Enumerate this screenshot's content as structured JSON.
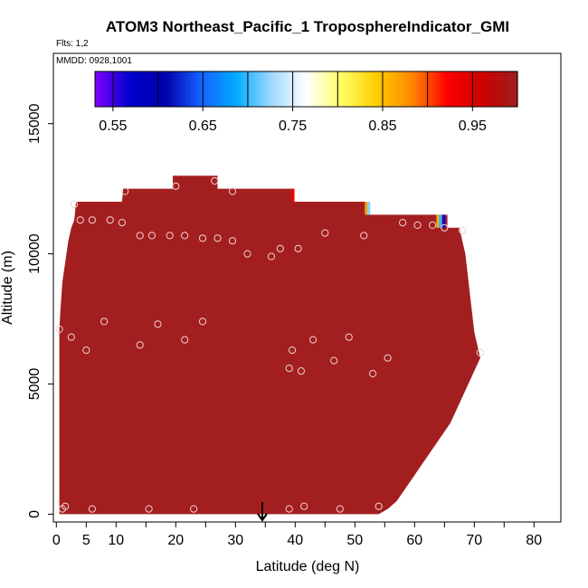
{
  "chart_data": {
    "type": "heatmap",
    "title": "ATOM3 Northeast_Pacific_1 TroposphereIndicator_GMI",
    "subtitle_flights": "Flts: 1,2",
    "subtitle_dates": "MMDD: 0928,1001",
    "xlabel": "Latitude (deg N)",
    "ylabel": "Altitude (m)",
    "xlim": [
      -0.5,
      84.5
    ],
    "ylim": [
      -300,
      17700
    ],
    "x_ticks": [
      0,
      5,
      10,
      20,
      30,
      40,
      50,
      60,
      70,
      80
    ],
    "x_minor_ticks": [
      15,
      25,
      35,
      45,
      55,
      65,
      75,
      85
    ],
    "y_ticks": [
      0,
      5000,
      10000,
      15000
    ],
    "colorbar": {
      "range": [
        0.53,
        1.0
      ],
      "tick_values": [
        0.55,
        0.65,
        0.75,
        0.85,
        0.95
      ],
      "tick_labels": [
        "0.55",
        "0.65",
        "0.75",
        "0.85",
        "0.95"
      ],
      "segment_edges": [
        0.53,
        0.55,
        0.6,
        0.65,
        0.7,
        0.75,
        0.8,
        0.85,
        0.9,
        0.95,
        1.0
      ],
      "color_stops": [
        "#7f00ff",
        "#0000cd",
        "#0000aa",
        "#1560ff",
        "#00aaff",
        "#9fd8ff",
        "#ffffff",
        "#ffff66",
        "#ffcc00",
        "#ff8800",
        "#ff0000",
        "#cc0000",
        "#9e1e1e"
      ]
    },
    "fill_value": 0.99,
    "fill_color": "#a31f1f",
    "field_outline": [
      [
        0.5,
        0
      ],
      [
        0.5,
        7100
      ],
      [
        0.7,
        7900
      ],
      [
        1.0,
        8900
      ],
      [
        1.5,
        9700
      ],
      [
        2.0,
        10500
      ],
      [
        2.5,
        11000
      ],
      [
        3.0,
        11300
      ],
      [
        3.3,
        12000
      ],
      [
        11.0,
        12000
      ],
      [
        11.2,
        12500
      ],
      [
        19.5,
        12500
      ],
      [
        19.5,
        13000
      ],
      [
        27.0,
        13000
      ],
      [
        27.0,
        12500
      ],
      [
        39.8,
        12500
      ],
      [
        39.8,
        12000
      ],
      [
        52.5,
        12000
      ],
      [
        52.5,
        11500
      ],
      [
        65.5,
        11500
      ],
      [
        65.5,
        11000
      ],
      [
        67.5,
        11000
      ],
      [
        68.5,
        10000
      ],
      [
        69.0,
        9000
      ],
      [
        69.5,
        8000
      ],
      [
        70.0,
        7000
      ],
      [
        70.5,
        6500
      ],
      [
        71.0,
        6000
      ],
      [
        70.0,
        5500
      ],
      [
        69.0,
        5000
      ],
      [
        68.0,
        4500
      ],
      [
        67.0,
        4000
      ],
      [
        66.0,
        3500
      ],
      [
        64.5,
        3000
      ],
      [
        63.0,
        2500
      ],
      [
        61.5,
        2000
      ],
      [
        60.0,
        1500
      ],
      [
        58.5,
        1000
      ],
      [
        57.0,
        500
      ],
      [
        55.5,
        200
      ],
      [
        54.0,
        0
      ]
    ],
    "colored_cells": [
      {
        "lat": 39.6,
        "alt_low": 12000,
        "alt_high": 12500,
        "value": 0.93
      },
      {
        "lat": 51.9,
        "alt_low": 11500,
        "alt_high": 12000,
        "value": 0.87
      },
      {
        "lat": 52.3,
        "alt_low": 11500,
        "alt_high": 12000,
        "value": 0.72
      },
      {
        "lat": 63.9,
        "alt_low": 11000,
        "alt_high": 11500,
        "value": 0.86
      },
      {
        "lat": 64.3,
        "alt_low": 11000,
        "alt_high": 11500,
        "value": 0.7
      },
      {
        "lat": 64.9,
        "alt_low": 11000,
        "alt_high": 11500,
        "value": 0.56
      }
    ],
    "sample_points": [
      [
        0.5,
        7100
      ],
      [
        1.0,
        200
      ],
      [
        1.5,
        300
      ],
      [
        2.5,
        6800
      ],
      [
        3.0,
        11900
      ],
      [
        4.0,
        11300
      ],
      [
        5.0,
        6300
      ],
      [
        6.0,
        11300
      ],
      [
        6.0,
        200
      ],
      [
        8.0,
        7400
      ],
      [
        9.0,
        11300
      ],
      [
        11.0,
        11200
      ],
      [
        11.5,
        12400
      ],
      [
        14.0,
        10700
      ],
      [
        14.0,
        6500
      ],
      [
        15.5,
        200
      ],
      [
        16.0,
        10700
      ],
      [
        17.0,
        7300
      ],
      [
        19.0,
        10700
      ],
      [
        20.0,
        12600
      ],
      [
        21.5,
        10700
      ],
      [
        21.5,
        6700
      ],
      [
        23.0,
        200
      ],
      [
        24.5,
        10600
      ],
      [
        24.5,
        7400
      ],
      [
        26.5,
        12800
      ],
      [
        27.0,
        10600
      ],
      [
        29.5,
        10500
      ],
      [
        29.5,
        12400
      ],
      [
        32.0,
        10000
      ],
      [
        36.0,
        9900
      ],
      [
        37.5,
        10200
      ],
      [
        39.0,
        5600
      ],
      [
        39.0,
        200
      ],
      [
        39.5,
        6300
      ],
      [
        40.5,
        10200
      ],
      [
        41.0,
        5500
      ],
      [
        41.5,
        300
      ],
      [
        43.0,
        6700
      ],
      [
        45.0,
        10800
      ],
      [
        46.5,
        5900
      ],
      [
        47.5,
        200
      ],
      [
        49.0,
        6800
      ],
      [
        51.5,
        10700
      ],
      [
        53.0,
        5400
      ],
      [
        54.0,
        300
      ],
      [
        55.5,
        6000
      ],
      [
        58.0,
        11200
      ],
      [
        60.5,
        11100
      ],
      [
        63.0,
        11100
      ],
      [
        65.0,
        11000
      ],
      [
        68.0,
        10900
      ],
      [
        71.0,
        6200
      ]
    ],
    "marker_arrow_lat": 34.5
  }
}
